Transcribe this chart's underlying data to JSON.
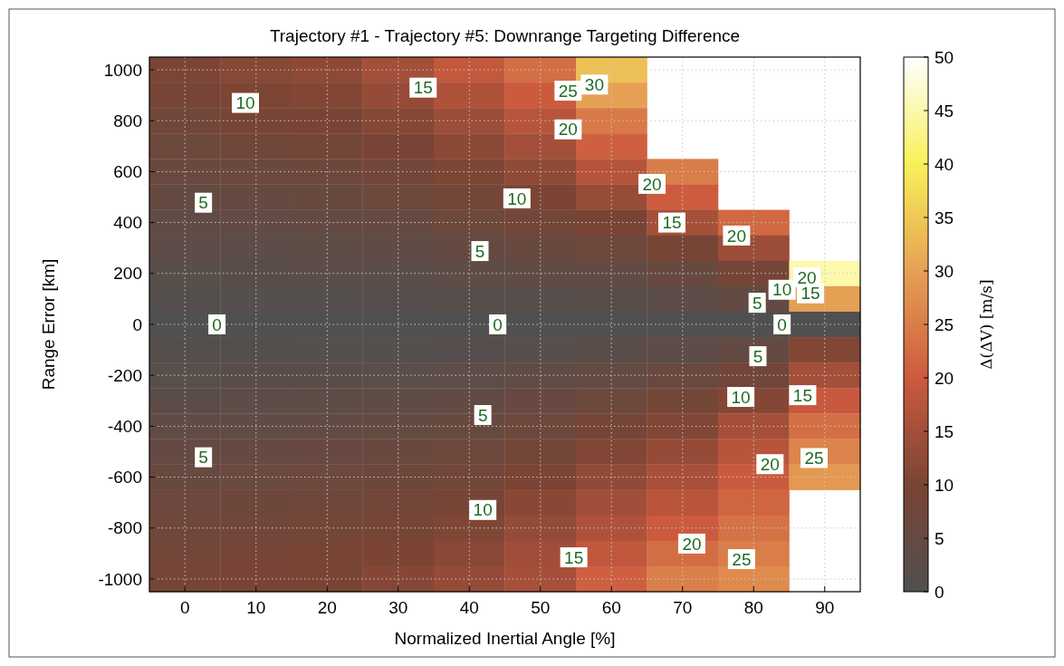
{
  "chart_data": {
    "type": "heatmap",
    "title": "Trajectory #1 - Trajectory #5: Downrange Targeting Difference",
    "xlabel": "Normalized Inertial Angle [%]",
    "ylabel": "Range Error [km]",
    "clabel": "Δ(ΔV) [m/s]",
    "categories": [
      "0",
      "10",
      "20",
      "30",
      "40",
      "50",
      "60",
      "70",
      "80",
      "90"
    ],
    "y_categories": [
      "1000",
      null,
      "800",
      null,
      "600",
      null,
      "400",
      null,
      "200",
      null,
      "0",
      null,
      "-200",
      null,
      "-400",
      null,
      "-600",
      null,
      "-800",
      null,
      "-1000"
    ],
    "cells": [
      [
        10.2,
        11.6,
        12.4,
        15.1,
        19,
        23,
        34,
        null,
        null,
        null
      ],
      [
        9,
        10.4,
        11.1,
        13.3,
        16.3,
        20,
        30,
        null,
        null,
        null
      ],
      [
        7.9,
        9.2,
        9.8,
        11.4,
        14,
        17.5,
        24.5,
        null,
        null,
        null
      ],
      [
        6.9,
        7.8,
        8.5,
        9.7,
        12.2,
        15,
        20.8,
        null,
        null,
        null
      ],
      [
        5.9,
        6.5,
        7.1,
        8.2,
        10.3,
        12.5,
        17.3,
        25,
        null,
        null
      ],
      [
        4.9,
        5.3,
        5.8,
        6.7,
        8.5,
        10.1,
        13.5,
        20.3,
        null,
        null
      ],
      [
        3.9,
        4.2,
        4.5,
        5.1,
        6.8,
        8.1,
        9.7,
        15.3,
        22,
        null
      ],
      [
        3,
        3.2,
        3.4,
        3.8,
        5,
        5.7,
        7,
        9.4,
        14,
        null
      ],
      [
        2,
        2.1,
        2.3,
        2.6,
        3.3,
        3.8,
        4.2,
        5.6,
        8.8,
        45
      ],
      [
        1,
        1.1,
        1.2,
        1.3,
        1.7,
        1.9,
        2.1,
        2.8,
        4.5,
        30
      ],
      [
        0,
        0,
        0,
        0,
        0,
        0,
        0,
        0,
        0,
        0
      ],
      [
        1,
        1.05,
        1.1,
        1.2,
        1.4,
        1.9,
        2.4,
        3,
        4.6,
        11
      ],
      [
        2,
        2.1,
        2.2,
        2.5,
        2.9,
        3.7,
        4.8,
        5.9,
        8,
        15
      ],
      [
        2.95,
        3.1,
        3.3,
        3.7,
        4.3,
        5.5,
        6.9,
        8.4,
        11.2,
        19.5
      ],
      [
        3.9,
        4.1,
        4.4,
        4.9,
        5.7,
        7,
        8.9,
        10.9,
        15.2,
        23
      ],
      [
        4.8,
        5.1,
        5.5,
        6,
        6.9,
        8.6,
        10.9,
        13.3,
        17.5,
        26
      ],
      [
        5.75,
        6.2,
        6.6,
        7.1,
        8.1,
        10.2,
        12.8,
        15.6,
        19.8,
        29
      ],
      [
        6.6,
        7.1,
        7.6,
        8.1,
        9.4,
        11.8,
        14.6,
        17.8,
        21.6,
        null
      ],
      [
        7.5,
        8,
        8.6,
        9.2,
        10.7,
        13.2,
        16.5,
        19.9,
        23.4,
        null
      ],
      [
        8.35,
        9,
        9.5,
        10.2,
        12,
        14.6,
        18.6,
        22.8,
        25.2,
        null
      ],
      [
        9.2,
        9.8,
        10,
        11.3,
        13.3,
        15.4,
        20.7,
        25.3,
        27,
        null
      ]
    ],
    "clim": [
      0,
      50
    ],
    "cticks": [
      0,
      5,
      10,
      15,
      20,
      25,
      30,
      35,
      40,
      45,
      50
    ],
    "grid": true,
    "annotations": [
      "0",
      "0",
      "0",
      "5",
      "10",
      "15",
      "25",
      "30",
      "20",
      "10",
      "5",
      "20",
      "15",
      "20",
      "5",
      "10",
      "15",
      "20",
      "5",
      "5",
      "10",
      "15",
      "20",
      "25",
      "10",
      "5",
      "20",
      "15",
      "25"
    ]
  }
}
